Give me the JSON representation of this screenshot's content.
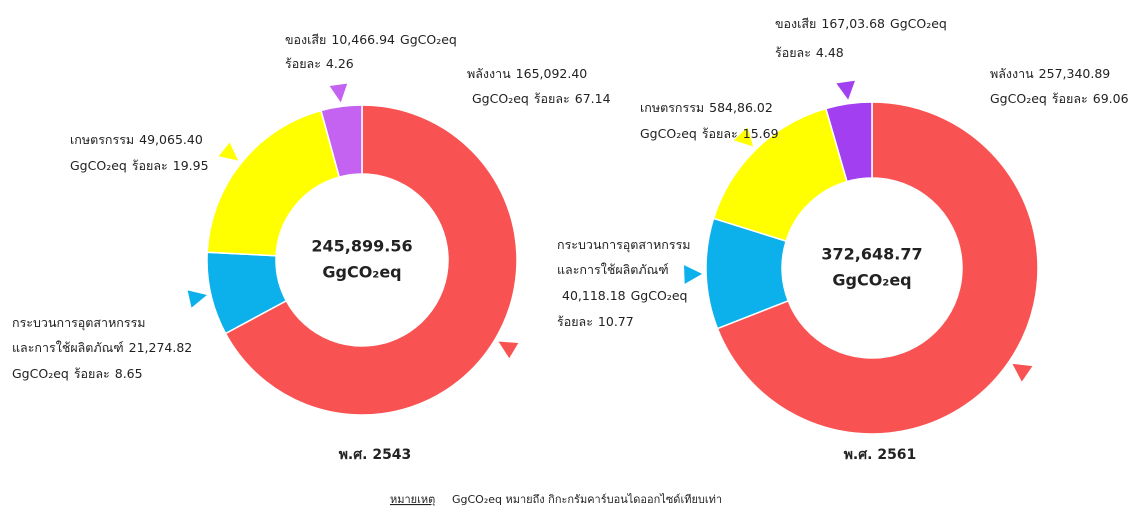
{
  "chart_data": [
    {
      "type": "pie",
      "donut": true,
      "title": "พ.ศ. 2543",
      "total": "245,899.56",
      "unit": "GgCO₂eq",
      "percent_word": "ร้อยละ",
      "categories": [
        "พลังงาน",
        [
          "กระบวนการอุตสาหกรรม",
          "และการใช้ผลิตภัณฑ์"
        ],
        "เกษตรกรรม",
        "ของเสีย"
      ],
      "colors": [
        "#f95252",
        "#0cb0ea",
        "#ffff00",
        "#c462f2"
      ],
      "values": [
        67.14,
        8.65,
        19.95,
        4.26
      ],
      "amounts": [
        "165,092.40",
        "21,274.82",
        "49,065.40",
        "10,466.94"
      ]
    },
    {
      "type": "pie",
      "donut": true,
      "title": "พ.ศ. 2561",
      "total": "372,648.77",
      "unit": "GgCO₂eq",
      "percent_word": "ร้อยละ",
      "categories": [
        "พลังงาน",
        [
          "กระบวนการอุตสาหกรรม",
          "และการใช้ผลิตภัณฑ์"
        ],
        "เกษตรกรรม",
        "ของเสีย"
      ],
      "colors": [
        "#f95252",
        "#0cb0ea",
        "#ffff00",
        "#a23ff0"
      ],
      "values": [
        69.06,
        10.77,
        15.69,
        4.48
      ],
      "amounts": [
        "257,340.89",
        "40,118.18",
        "584,86.02",
        "167,03.68"
      ]
    }
  ],
  "footnote": {
    "label": "หมายเหตุ",
    "text": "GgCO₂eq หมายถึง กิกะกรัมคาร์บอนไดออกไซด์เทียบเท่า"
  }
}
